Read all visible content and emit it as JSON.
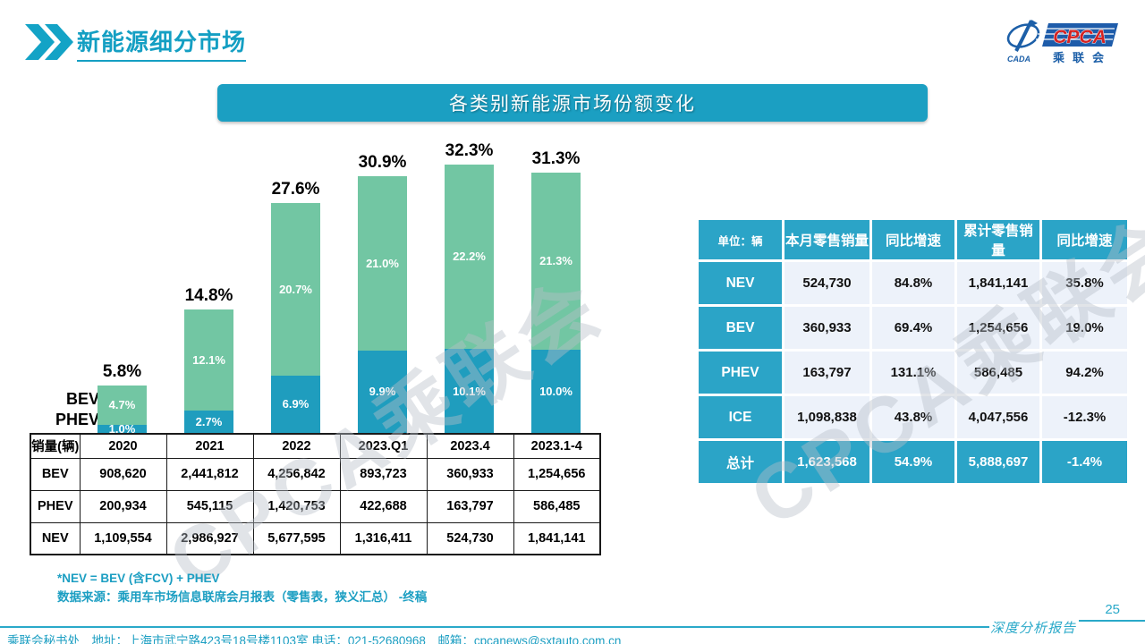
{
  "page": {
    "title": "新能源细分市场",
    "page_number": "25",
    "report_type_label": "深度分析报告",
    "watermark": "CPCA乘联会"
  },
  "logo": {
    "initials": "CPCA",
    "sub": "乘联会",
    "emblem_text": "CADA"
  },
  "banner": {
    "title": "各类别新能源市场份额变化"
  },
  "chart_data": {
    "type": "bar",
    "stacked": true,
    "title": "各类别新能源市场份额变化",
    "unit": "%",
    "categories": [
      "2020",
      "2021",
      "2022",
      "2023.Q1",
      "2023.4",
      "2023.1-4"
    ],
    "series": [
      {
        "name": "PHEV",
        "color": "#1f9dbe",
        "values": [
          1.0,
          2.7,
          6.9,
          9.9,
          10.1,
          10.0
        ]
      },
      {
        "name": "BEV",
        "color": "#72c6a3",
        "values": [
          4.7,
          12.1,
          20.7,
          21.0,
          22.2,
          21.3
        ]
      }
    ],
    "totals": [
      "5.8%",
      "14.8%",
      "27.6%",
      "30.9%",
      "32.3%",
      "31.3%"
    ],
    "ylim": [
      0,
      34
    ],
    "grid": false,
    "legend_position": "left"
  },
  "sales_table": {
    "corner_label": "销量(辆)",
    "columns": [
      "2020",
      "2021",
      "2022",
      "2023.Q1",
      "2023.4",
      "2023.1-4"
    ],
    "rows": [
      {
        "label": "BEV",
        "values": [
          "908,620",
          "2,441,812",
          "4,256,842",
          "893,723",
          "360,933",
          "1,254,656"
        ]
      },
      {
        "label": "PHEV",
        "values": [
          "200,934",
          "545,115",
          "1,420,753",
          "422,688",
          "163,797",
          "586,485"
        ]
      },
      {
        "label": "NEV",
        "values": [
          "1,109,554",
          "2,986,927",
          "5,677,595",
          "1,316,411",
          "524,730",
          "1,841,141"
        ]
      }
    ]
  },
  "summary_table": {
    "columns": [
      "单位：辆",
      "本月零售销量",
      "同比增速",
      "累计零售销量",
      "同比增速"
    ],
    "rows": [
      {
        "label": "NEV",
        "values": [
          "524,730",
          "84.8%",
          "1,841,141",
          "35.8%"
        ],
        "total": false
      },
      {
        "label": "BEV",
        "values": [
          "360,933",
          "69.4%",
          "1,254,656",
          "19.0%"
        ],
        "total": false
      },
      {
        "label": "PHEV",
        "values": [
          "163,797",
          "131.1%",
          "586,485",
          "94.2%"
        ],
        "total": false
      },
      {
        "label": "ICE",
        "values": [
          "1,098,838",
          "43.8%",
          "4,047,556",
          "-12.3%"
        ],
        "total": false
      },
      {
        "label": "总计",
        "values": [
          "1,623,568",
          "54.9%",
          "5,888,697",
          "-1.4%"
        ],
        "total": true
      }
    ]
  },
  "notes": {
    "line1": "*NEV = BEV (含FCV) + PHEV",
    "line2": "数据来源：乘用车市场信息联席会月报表（零售表，狭义汇总） -终稿"
  },
  "footer": {
    "text": "乘联会秘书处　地址：上海市武宁路423号18号楼1103室 电话：021-52680968　邮箱：cpcanews@sxtauto.com.cn"
  },
  "colors": {
    "accent": "#149fc3",
    "banner_bg": "#1b9fc2",
    "table_header_bg": "#2ba4c7",
    "table_cell_bg": "#edf2fa",
    "bar_phev": "#1f9dbe",
    "bar_bev": "#72c6a3",
    "watermark": "#b7bec7"
  }
}
